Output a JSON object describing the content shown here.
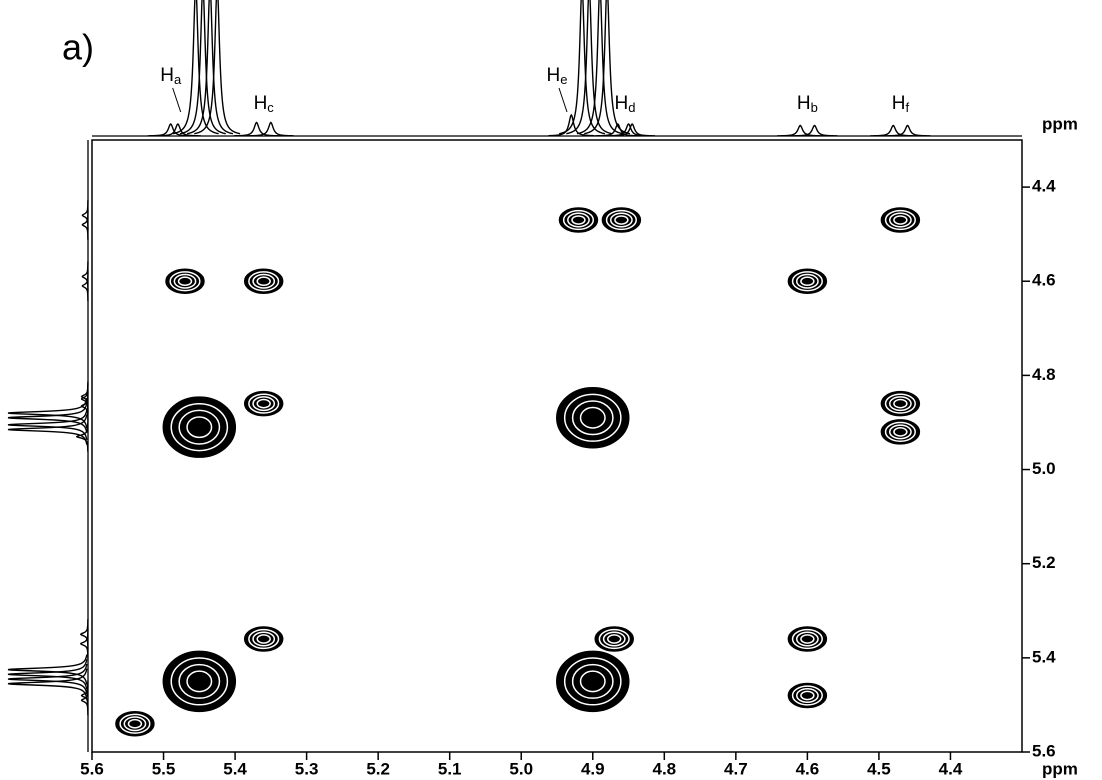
{
  "chart_data": {
    "type": "scatter",
    "title": "a)",
    "x_label": "ppm",
    "y_label": "ppm",
    "xlim": [
      5.6,
      4.3
    ],
    "ylim": [
      4.3,
      5.6
    ],
    "xticks": [
      5.6,
      5.5,
      5.4,
      5.3,
      5.2,
      5.1,
      {
        "value": 5,
        "label": "5.0"
      },
      4.9,
      4.8,
      4.7,
      4.6,
      4.5,
      4.4
    ],
    "yticks": [
      4.4,
      4.6,
      4.8,
      {
        "value": 5,
        "label": "5.0"
      },
      5.2,
      5.4,
      5.6
    ],
    "color": "#000000",
    "x": [
      4.92,
      4.86,
      4.47,
      5.47,
      5.36,
      4.6,
      5.45,
      5.36,
      4.9,
      4.47,
      4.47,
      5.36,
      4.87,
      4.6,
      4.6,
      5.45,
      4.9,
      5.54
    ],
    "y": [
      4.47,
      4.47,
      4.47,
      4.6,
      4.6,
      4.6,
      4.91,
      4.86,
      4.89,
      4.86,
      4.92,
      5.36,
      5.36,
      5.36,
      5.48,
      5.45,
      5.45,
      5.54
    ],
    "projection": {
      "x": [
        5.49,
        5.48,
        5.455,
        5.445,
        5.435,
        5.425,
        5.37,
        5.35,
        4.93,
        4.915,
        4.905,
        4.89,
        4.88,
        4.865,
        4.85,
        4.845,
        4.61,
        4.59,
        4.48,
        4.46
      ],
      "intensity": [
        8,
        8,
        100,
        100,
        100,
        100,
        9,
        9,
        14,
        100,
        100,
        100,
        100,
        8,
        8,
        8,
        7,
        7,
        7,
        7
      ]
    },
    "annotations": [
      {
        "text": "H",
        "sub": "a",
        "x": 5.49
      },
      {
        "text": "H",
        "sub": "c",
        "x": 5.36
      },
      {
        "text": "H",
        "sub": "e",
        "x": 4.95
      },
      {
        "text": "H",
        "sub": "d",
        "x": 4.855
      },
      {
        "text": "H",
        "sub": "b",
        "x": 4.6
      },
      {
        "text": "H",
        "sub": "f",
        "x": 4.47
      }
    ]
  }
}
